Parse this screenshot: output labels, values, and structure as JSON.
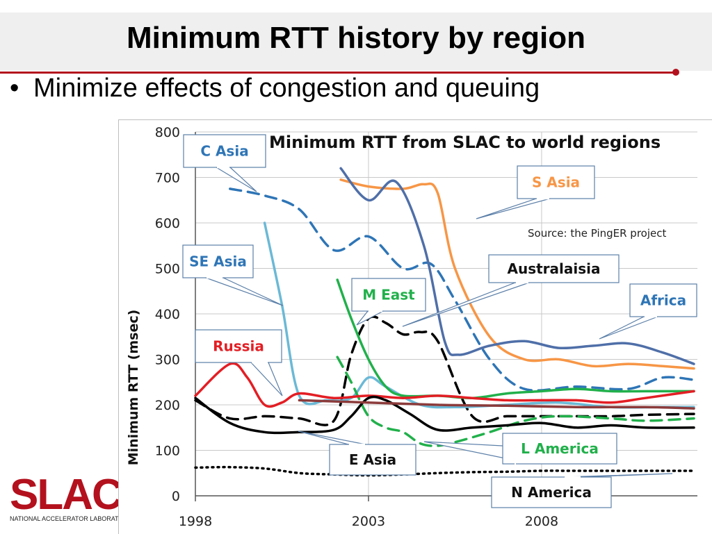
{
  "slide": {
    "title": "Minimum RTT history by region",
    "bullet": "Minimize effects of congestion and queuing"
  },
  "logo": {
    "text": "SLAC",
    "subtitle": "NATIONAL ACCELERATOR LABORATORY"
  },
  "chart_data": {
    "type": "line",
    "title": "Minimum RTT from SLAC to world regions",
    "annotation": "Source: the PingER project",
    "xlabel": "",
    "ylabel": "Minimum RTT (msec)",
    "xlim": [
      1998,
      2012.5
    ],
    "ylim": [
      0,
      800
    ],
    "x_ticks": [
      "1998",
      "2003",
      "2008"
    ],
    "x_tick_values": [
      1998,
      2003,
      2008
    ],
    "y_ticks": [
      0,
      100,
      200,
      300,
      400,
      500,
      600,
      700,
      800
    ],
    "grid": "horizontal",
    "series": [
      {
        "name": "C Asia",
        "color": "#2e75b6",
        "style": "dashed",
        "x": [
          1999,
          2000,
          2001,
          2002,
          2003,
          2004,
          2004.8,
          2005.5,
          2006.5,
          2007.5,
          2009,
          2010.5,
          2011.5,
          2012.4
        ],
        "y": [
          675,
          660,
          630,
          540,
          570,
          500,
          510,
          430,
          300,
          235,
          240,
          235,
          260,
          255
        ]
      },
      {
        "name": "S Asia",
        "color": "#f79646",
        "style": "solid",
        "x": [
          2002.2,
          2003,
          2004,
          2004.6,
          2005,
          2005.5,
          2006.5,
          2007.5,
          2008.5,
          2009.5,
          2010.5,
          2011.5,
          2012.4
        ],
        "y": [
          695,
          680,
          675,
          685,
          665,
          500,
          350,
          300,
          300,
          285,
          290,
          285,
          280
        ]
      },
      {
        "name": "Australaisia",
        "color": "#000000",
        "style": "dashed",
        "x": [
          1998,
          1999,
          2000,
          2001,
          2002,
          2002.5,
          2003,
          2003.5,
          2004,
          2004.5,
          2005,
          2006,
          2007,
          2008,
          2009,
          2010,
          2011,
          2012.4
        ],
        "y": [
          210,
          170,
          175,
          170,
          165,
          310,
          390,
          380,
          355,
          360,
          340,
          175,
          175,
          175,
          175,
          175,
          178,
          180
        ]
      },
      {
        "name": "Africa",
        "color": "#4f6fa8",
        "style": "solid",
        "x": [
          2002.2,
          2003,
          2003.8,
          2004.6,
          2005.2,
          2005.6,
          2006.5,
          2007.5,
          2008.5,
          2009.5,
          2010.5,
          2011.5,
          2012.4
        ],
        "y": [
          720,
          650,
          690,
          550,
          340,
          310,
          330,
          340,
          325,
          330,
          335,
          315,
          290
        ]
      },
      {
        "name": "SE Asia",
        "color": "#6bb9d6",
        "style": "solid",
        "x": [
          2000,
          2000.5,
          2001,
          2001.8,
          2002.5,
          2003,
          2003.5,
          2004.5,
          2005.5,
          2007,
          2008.5,
          2010,
          2011.5,
          2012.4
        ],
        "y": [
          600,
          420,
          220,
          210,
          215,
          260,
          240,
          200,
          195,
          200,
          205,
          195,
          195,
          195
        ]
      },
      {
        "name": "M East",
        "color": "#21b04b",
        "style": "solid",
        "x": [
          2002.1,
          2002.5,
          2003,
          2003.5,
          2004,
          2005,
          2006,
          2007,
          2008,
          2009,
          2010,
          2011,
          2012.4
        ],
        "y": [
          475,
          390,
          300,
          240,
          220,
          220,
          215,
          225,
          230,
          235,
          230,
          230,
          230
        ]
      },
      {
        "name": "L America",
        "color": "#21b04b",
        "style": "dashed",
        "x": [
          2002.1,
          2002.5,
          2003,
          2003.5,
          2004,
          2004.5,
          2005,
          2005.6,
          2006.5,
          2007.5,
          2008.5,
          2010,
          2011,
          2012.4
        ],
        "y": [
          305,
          250,
          175,
          150,
          140,
          115,
          110,
          120,
          140,
          165,
          175,
          170,
          165,
          170
        ]
      },
      {
        "name": "Russia",
        "color": "#e31e24",
        "style": "solid",
        "x": [
          1998,
          1999,
          1999.5,
          2000,
          2000.5,
          2001,
          2002,
          2003,
          2004,
          2005,
          2006,
          2007,
          2008,
          2009,
          2010,
          2011,
          2012.4
        ],
        "y": [
          220,
          290,
          260,
          200,
          205,
          225,
          215,
          220,
          215,
          220,
          215,
          210,
          210,
          210,
          205,
          215,
          230
        ]
      },
      {
        "name": "E Asia",
        "color": "#000000",
        "style": "solid",
        "x": [
          1998,
          1999,
          2000,
          2001,
          2002,
          2002.5,
          2003,
          2003.5,
          2004.2,
          2005,
          2006,
          2007,
          2008,
          2009,
          2010,
          2011,
          2012.4
        ],
        "y": [
          215,
          160,
          140,
          140,
          145,
          175,
          215,
          210,
          180,
          145,
          150,
          155,
          160,
          150,
          155,
          150,
          150
        ]
      },
      {
        "name": "N America",
        "color": "#000000",
        "style": "dotted",
        "x": [
          1998,
          1999,
          2000,
          2001,
          2002,
          2003,
          2004,
          2005,
          2006,
          2007,
          2008,
          2009,
          2010,
          2011,
          2012.4
        ],
        "y": [
          62,
          63,
          60,
          50,
          47,
          45,
          47,
          50,
          52,
          53,
          55,
          55,
          55,
          55,
          55
        ]
      },
      {
        "name": "",
        "color": "#8c3b3b",
        "style": "solid",
        "x": [
          2001,
          2003,
          2005,
          2007,
          2009,
          2011,
          2012.4
        ],
        "y": [
          210,
          205,
          200,
          198,
          195,
          195,
          192
        ]
      }
    ]
  },
  "labels": [
    {
      "text": "C Asia",
      "color": "#2e75b6"
    },
    {
      "text": "S Asia",
      "color": "#f79646"
    },
    {
      "text": "Australaisia",
      "color": "#111111"
    },
    {
      "text": "Africa",
      "color": "#2e75b6"
    },
    {
      "text": "SE Asia",
      "color": "#2e75b6"
    },
    {
      "text": "M East",
      "color": "#21b04b"
    },
    {
      "text": "Russia",
      "color": "#e31e24"
    },
    {
      "text": "E Asia",
      "color": "#111111"
    },
    {
      "text": "L America",
      "color": "#21b04b"
    },
    {
      "text": "N America",
      "color": "#111111"
    }
  ]
}
